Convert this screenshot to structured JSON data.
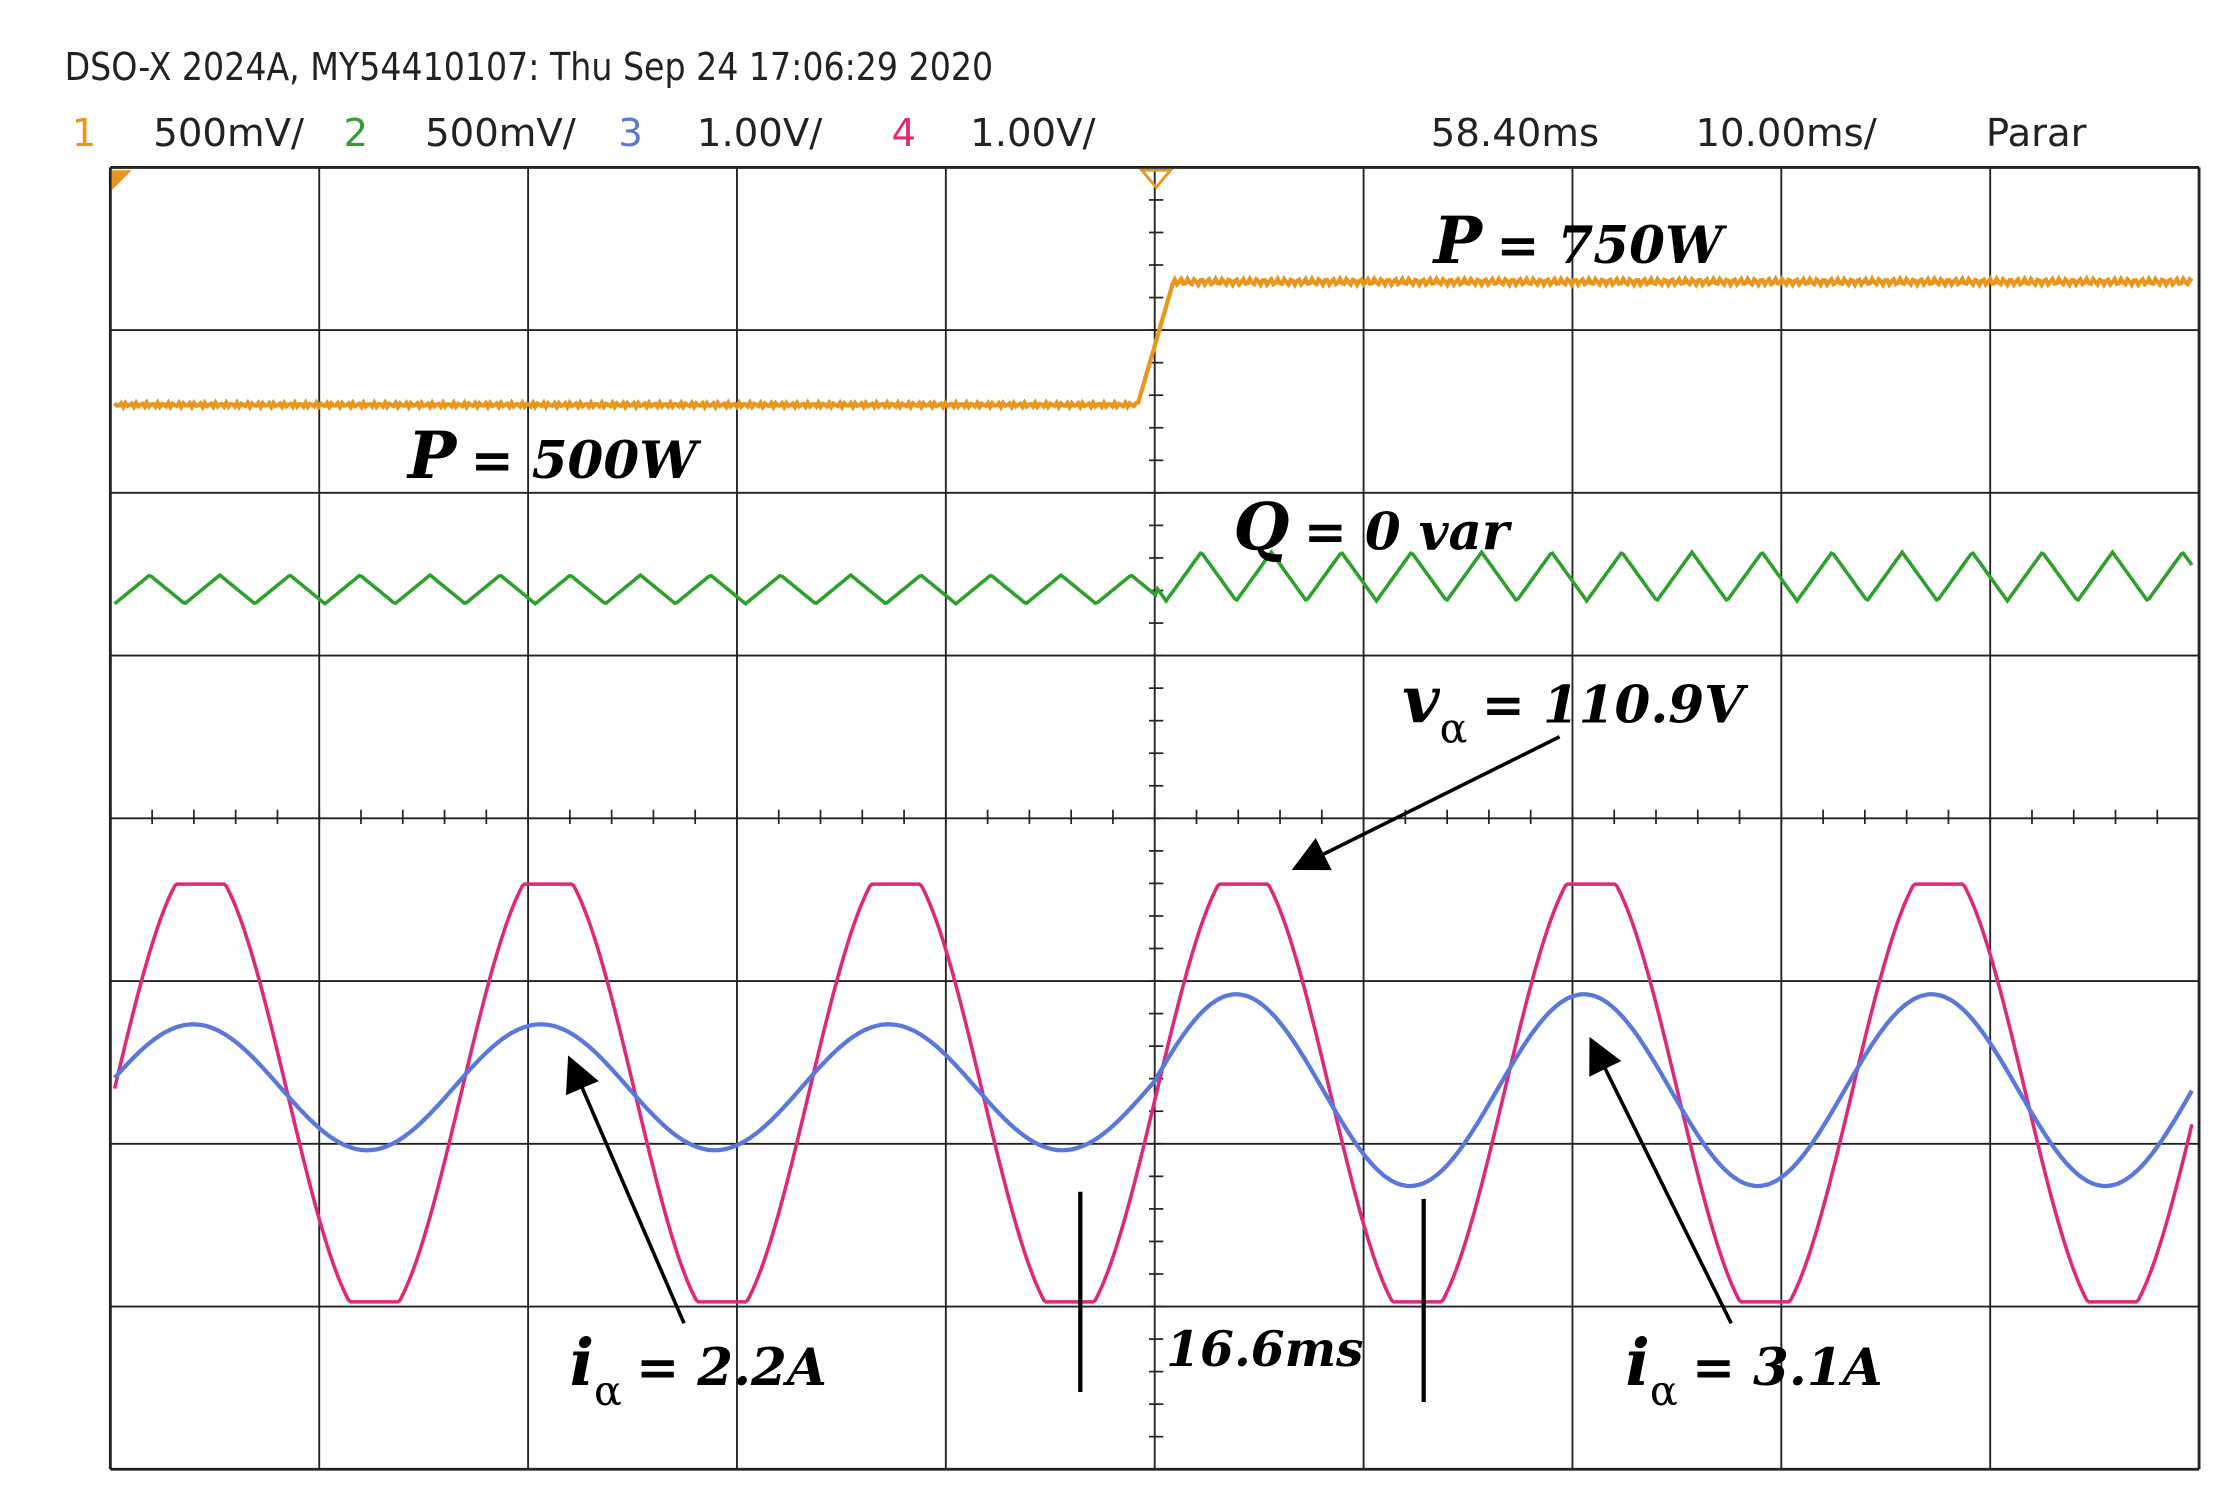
{
  "header": {
    "title": "DSO-X 2024A, MY54410107: Thu Sep 24 17:06:29 2020",
    "channels": [
      {
        "number": "1",
        "scale": "500mV/",
        "color": "#e8961e"
      },
      {
        "number": "2",
        "scale": "500mV/",
        "color": "#2ea02e"
      },
      {
        "number": "3",
        "scale": "1.00V/",
        "color": "#5a78dc"
      },
      {
        "number": "4",
        "scale": "1.00V/",
        "color": "#e0287a"
      }
    ],
    "delay": "58.40ms",
    "timebase": "10.00ms/",
    "status": "Parar"
  },
  "annotations": {
    "p_high": {
      "symbol": "P",
      "text": "= 750W"
    },
    "p_low": {
      "symbol": "P",
      "text": "= 500W"
    },
    "q": {
      "symbol": "Q",
      "text": "= 0 var"
    },
    "v": {
      "symbol": "v",
      "subscript": "α",
      "text": "= 110.9V"
    },
    "i_low": {
      "symbol": "i",
      "subscript": "α",
      "text": "= 2.2A"
    },
    "period": {
      "text": "16.6ms"
    },
    "i_high": {
      "symbol": "i",
      "subscript": "α",
      "text": "= 3.1A"
    }
  }
}
